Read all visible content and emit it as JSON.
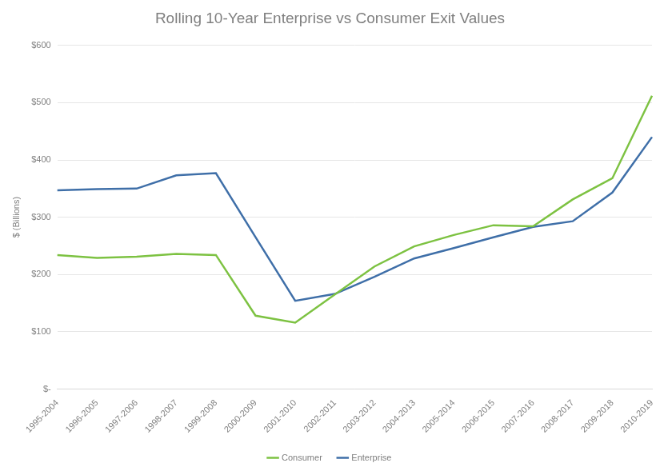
{
  "chart_data": {
    "type": "line",
    "title": "Rolling 10-Year Enterprise vs Consumer Exit Values",
    "y_label": "$ (Billions)",
    "categories": [
      "1995-2004",
      "1996-2005",
      "1997-2006",
      "1998-2007",
      "1999-2008",
      "2000-2009",
      "2001-2010",
      "2002-2011",
      "2003-2012",
      "2004-2013",
      "2005-2014",
      "2006-2015",
      "2007-2016",
      "2008-2017",
      "2009-2018",
      "2010-2019"
    ],
    "series": [
      {
        "name": "Consumer",
        "color": "#7dc242",
        "values": [
          234,
          229,
          231,
          236,
          234,
          128,
          116,
          165,
          214,
          249,
          269,
          286,
          284,
          331,
          368,
          512
        ]
      },
      {
        "name": "Enterprise",
        "color": "#3f6fa8",
        "values": [
          347,
          349,
          350,
          373,
          377,
          265,
          154,
          166,
          196,
          228,
          246,
          265,
          283,
          293,
          343,
          440
        ]
      }
    ],
    "ylim": [
      0,
      600
    ],
    "yticks": [
      {
        "value": 0,
        "label": "$-"
      },
      {
        "value": 100,
        "label": "$100"
      },
      {
        "value": 200,
        "label": "$200"
      },
      {
        "value": 300,
        "label": "$300"
      },
      {
        "value": 400,
        "label": "$400"
      },
      {
        "value": 500,
        "label": "$500"
      },
      {
        "value": 600,
        "label": "$600"
      }
    ],
    "grid": true,
    "legend": "bottom"
  }
}
